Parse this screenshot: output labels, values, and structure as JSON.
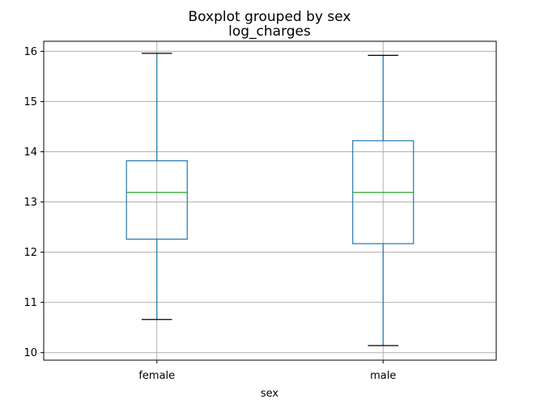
{
  "chart_data": {
    "type": "box",
    "title": "Boxplot grouped by sex",
    "subtitle": "log_charges",
    "xlabel": "sex",
    "ylabel": "",
    "ylim": [
      9.85,
      16.2
    ],
    "yticks": [
      10,
      11,
      12,
      13,
      14,
      15,
      16
    ],
    "grid": true,
    "categories": [
      "female",
      "male"
    ],
    "boxes": [
      {
        "category": "female",
        "whisker_low": 10.66,
        "q1": 12.26,
        "median": 13.19,
        "q3": 13.82,
        "whisker_high": 15.96
      },
      {
        "category": "male",
        "whisker_low": 10.14,
        "q1": 12.17,
        "median": 13.19,
        "q3": 14.22,
        "whisker_high": 15.92
      }
    ],
    "colors": {
      "box": "#1f77b4",
      "median": "#2ca02c",
      "cap": "#000000",
      "grid": "#b0b0b0"
    }
  }
}
